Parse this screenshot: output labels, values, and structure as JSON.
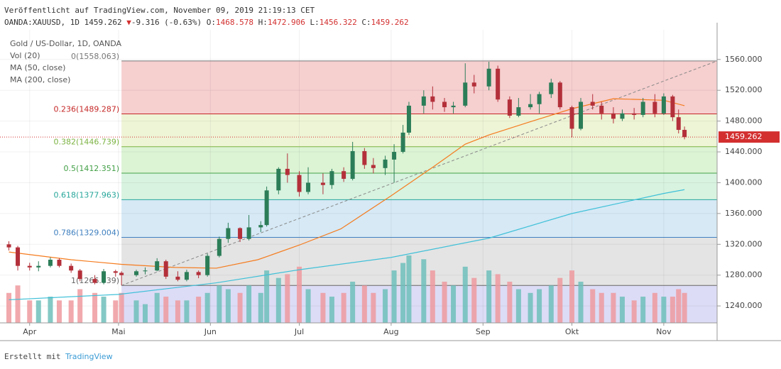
{
  "header": {
    "published": "Veröffentlicht auf TradingView.com, November 09, 2019 21:19:13 CET",
    "symbol": "OANDA:XAUUSD, 1D",
    "price": 1459.262,
    "arrow": "▼",
    "change": "-9.316 (-0.63%)",
    "o_label": "O:",
    "open": 1468.578,
    "h_label": "H:",
    "high": 1472.906,
    "l_label": "L:",
    "low": 1456.322,
    "c_label": "C:",
    "close": 1459.262
  },
  "footer": {
    "made_with": "Erstellt mit",
    "brand": "TradingView"
  },
  "chart_data": {
    "type": "candlestick",
    "title": "Gold  / US-Dollar, 1D, OANDA",
    "volume_label": "Vol (20)",
    "up_color": "#2b7d58",
    "down_color": "#b3303a",
    "volume_up_color": "#6fbfbb",
    "volume_down_color": "#ee9a9f",
    "candles": {
      "x": [
        "2019-03-25",
        "2019-03-28",
        "2019-04-01",
        "2019-04-04",
        "2019-04-08",
        "2019-04-11",
        "2019-04-15",
        "2019-04-18",
        "2019-04-23",
        "2019-04-26",
        "2019-04-30",
        "2019-05-02",
        "2019-05-07",
        "2019-05-10",
        "2019-05-14",
        "2019-05-17",
        "2019-05-21",
        "2019-05-24",
        "2019-05-28",
        "2019-05-31",
        "2019-06-04",
        "2019-06-07",
        "2019-06-11",
        "2019-06-14",
        "2019-06-18",
        "2019-06-20",
        "2019-06-24",
        "2019-06-27",
        "2019-07-01",
        "2019-07-04",
        "2019-07-09",
        "2019-07-12",
        "2019-07-16",
        "2019-07-19",
        "2019-07-23",
        "2019-07-26",
        "2019-07-30",
        "2019-08-02",
        "2019-08-05",
        "2019-08-07",
        "2019-08-12",
        "2019-08-15",
        "2019-08-19",
        "2019-08-22",
        "2019-08-26",
        "2019-08-29",
        "2019-09-03",
        "2019-09-06",
        "2019-09-10",
        "2019-09-13",
        "2019-09-17",
        "2019-09-20",
        "2019-09-24",
        "2019-09-27",
        "2019-10-01",
        "2019-10-04",
        "2019-10-08",
        "2019-10-11",
        "2019-10-15",
        "2019-10-18",
        "2019-10-22",
        "2019-10-25",
        "2019-10-29",
        "2019-11-01",
        "2019-11-04",
        "2019-11-06",
        "2019-11-08"
      ],
      "open": [
        1320,
        1316,
        1292,
        1290,
        1292,
        1300,
        1292,
        1286,
        1275,
        1270,
        1285,
        1283,
        1280,
        1285,
        1286,
        1298,
        1278,
        1274,
        1284,
        1280,
        1305,
        1327,
        1341,
        1327,
        1342,
        1345,
        1390,
        1418,
        1410,
        1388,
        1400,
        1397,
        1415,
        1405,
        1441,
        1423,
        1419,
        1430,
        1440,
        1465,
        1500,
        1512,
        1505,
        1498,
        1500,
        1530,
        1525,
        1548,
        1508,
        1487,
        1498,
        1502,
        1515,
        1530,
        1498,
        1470,
        1505,
        1500,
        1490,
        1483,
        1490,
        1488,
        1505,
        1490,
        1512,
        1485,
        1468.578
      ],
      "high": [
        1324,
        1318,
        1296,
        1298,
        1303,
        1302,
        1295,
        1288,
        1280,
        1288,
        1287,
        1285,
        1287,
        1290,
        1302,
        1300,
        1285,
        1287,
        1286,
        1308,
        1330,
        1348,
        1342,
        1358,
        1350,
        1395,
        1420,
        1438,
        1415,
        1420,
        1412,
        1418,
        1420,
        1453,
        1445,
        1432,
        1435,
        1450,
        1475,
        1505,
        1520,
        1525,
        1510,
        1505,
        1555,
        1540,
        1557,
        1552,
        1512,
        1510,
        1515,
        1518,
        1535,
        1532,
        1500,
        1510,
        1515,
        1505,
        1498,
        1495,
        1497,
        1510,
        1515,
        1516,
        1514,
        1495,
        1472.906
      ],
      "low": [
        1312,
        1286,
        1286,
        1285,
        1290,
        1290,
        1283,
        1272,
        1268,
        1268,
        1278,
        1266.639,
        1278,
        1281,
        1285,
        1275,
        1272,
        1272,
        1276,
        1278,
        1303,
        1322,
        1323,
        1325,
        1336,
        1343,
        1385,
        1400,
        1382,
        1385,
        1385,
        1392,
        1401,
        1403,
        1418,
        1412,
        1410,
        1400,
        1438,
        1462,
        1490,
        1495,
        1492,
        1490,
        1498,
        1516,
        1520,
        1505,
        1484,
        1485,
        1495,
        1490,
        1510,
        1495,
        1459,
        1468,
        1495,
        1482,
        1477,
        1480,
        1482,
        1485,
        1485,
        1488,
        1480,
        1464,
        1456.322
      ],
      "close": [
        1316,
        1292,
        1290,
        1292,
        1300,
        1292,
        1286,
        1275,
        1270,
        1285,
        1283,
        1280,
        1285,
        1286,
        1298,
        1278,
        1274,
        1284,
        1280,
        1305,
        1327,
        1341,
        1327,
        1342,
        1345,
        1390,
        1418,
        1410,
        1388,
        1400,
        1397,
        1415,
        1405,
        1441,
        1423,
        1419,
        1430,
        1440,
        1465,
        1500,
        1512,
        1505,
        1498,
        1500,
        1530,
        1525,
        1548,
        1508,
        1487,
        1498,
        1502,
        1515,
        1530,
        1498,
        1470,
        1505,
        1500,
        1490,
        1483,
        1490,
        1488,
        1505,
        1490,
        1512,
        1485,
        1468.578,
        1459.262
      ],
      "volume": [
        40,
        50,
        30,
        30,
        35,
        30,
        30,
        45,
        40,
        35,
        30,
        40,
        30,
        25,
        40,
        35,
        30,
        30,
        35,
        40,
        50,
        45,
        40,
        50,
        40,
        70,
        60,
        65,
        75,
        45,
        40,
        35,
        40,
        55,
        50,
        40,
        45,
        70,
        80,
        90,
        85,
        70,
        55,
        50,
        75,
        60,
        70,
        65,
        55,
        45,
        40,
        45,
        50,
        60,
        70,
        55,
        45,
        40,
        40,
        35,
        30,
        35,
        40,
        35,
        35,
        45,
        40
      ]
    },
    "series": [
      {
        "name": "MA (50, close)",
        "color": "#f57c1f",
        "x": [
          "2019-03-25",
          "2019-04-15",
          "2019-05-02",
          "2019-05-20",
          "2019-06-03",
          "2019-06-17",
          "2019-07-01",
          "2019-07-15",
          "2019-08-01",
          "2019-08-15",
          "2019-08-26",
          "2019-09-03",
          "2019-09-16",
          "2019-10-01",
          "2019-10-15",
          "2019-11-01",
          "2019-11-08"
        ],
        "values": [
          1310,
          1300,
          1294,
          1290,
          1289,
          1300,
          1319,
          1340,
          1383,
          1420,
          1450,
          1462,
          1478,
          1496,
          1509,
          1507,
          1500
        ]
      },
      {
        "name": "MA (200, close)",
        "color": "#3fc0d8",
        "x": [
          "2019-03-25",
          "2019-05-01",
          "2019-06-03",
          "2019-07-01",
          "2019-08-01",
          "2019-09-03",
          "2019-10-01",
          "2019-11-01",
          "2019-11-08"
        ],
        "values": [
          1248,
          1255,
          1270,
          1287,
          1303,
          1328,
          1360,
          1386,
          1391
        ]
      }
    ],
    "fib": {
      "start": "2019-05-02",
      "end": "2019-11-19",
      "line_color": "#888888",
      "levels": [
        {
          "value": 1558.063,
          "label": "0(1558.063)",
          "color": "#777777",
          "fill": "#f6cfcf"
        },
        {
          "value": 1489.287,
          "label": "0.236(1489.287)",
          "color": "#c62828",
          "fill": "#eef4d6"
        },
        {
          "value": 1446.739,
          "label": "0.382(1446.739)",
          "color": "#7cb342",
          "fill": "#dcf3d4"
        },
        {
          "value": 1412.351,
          "label": "0.5(1412.351)",
          "color": "#43a047",
          "fill": "#d8f3e0"
        },
        {
          "value": 1377.963,
          "label": "0.618(1377.963)",
          "color": "#26a69a",
          "fill": "#d6e9f5"
        },
        {
          "value": 1329.004,
          "label": "0.786(1329.004)",
          "color": "#3f7fbf",
          "fill": "#e4e4e4"
        },
        {
          "value": 1266.639,
          "label": "1(1266.639)",
          "color": "#666666",
          "fill": "#dcdcf6"
        }
      ]
    },
    "last_price": {
      "value": 1459.262,
      "label": "1459.262",
      "color": "#d32f2f"
    },
    "xlim": [
      "2019-03-22",
      "2019-11-19"
    ],
    "xticks": [
      {
        "value": "2019-04-01",
        "label": "Apr"
      },
      {
        "value": "2019-05-01",
        "label": "Mai"
      },
      {
        "value": "2019-06-01",
        "label": "Jun"
      },
      {
        "value": "2019-07-01",
        "label": "Jul"
      },
      {
        "value": "2019-08-01",
        "label": "Aug"
      },
      {
        "value": "2019-09-01",
        "label": "Sep"
      },
      {
        "value": "2019-10-01",
        "label": "Okt"
      },
      {
        "value": "2019-11-01",
        "label": "Nov"
      }
    ],
    "ylim": [
      1218,
      1598.5
    ],
    "yticks": [
      {
        "value": 1240,
        "label": "1240.000"
      },
      {
        "value": 1280,
        "label": "1280.000"
      },
      {
        "value": 1320,
        "label": "1320.000"
      },
      {
        "value": 1360,
        "label": "1360.000"
      },
      {
        "value": 1400,
        "label": "1400.000"
      },
      {
        "value": 1440,
        "label": "1440.000"
      },
      {
        "value": 1480,
        "label": "1480.000"
      },
      {
        "value": 1520,
        "label": "1520.000"
      },
      {
        "value": 1560,
        "label": "1560.000"
      }
    ],
    "grid": true
  }
}
